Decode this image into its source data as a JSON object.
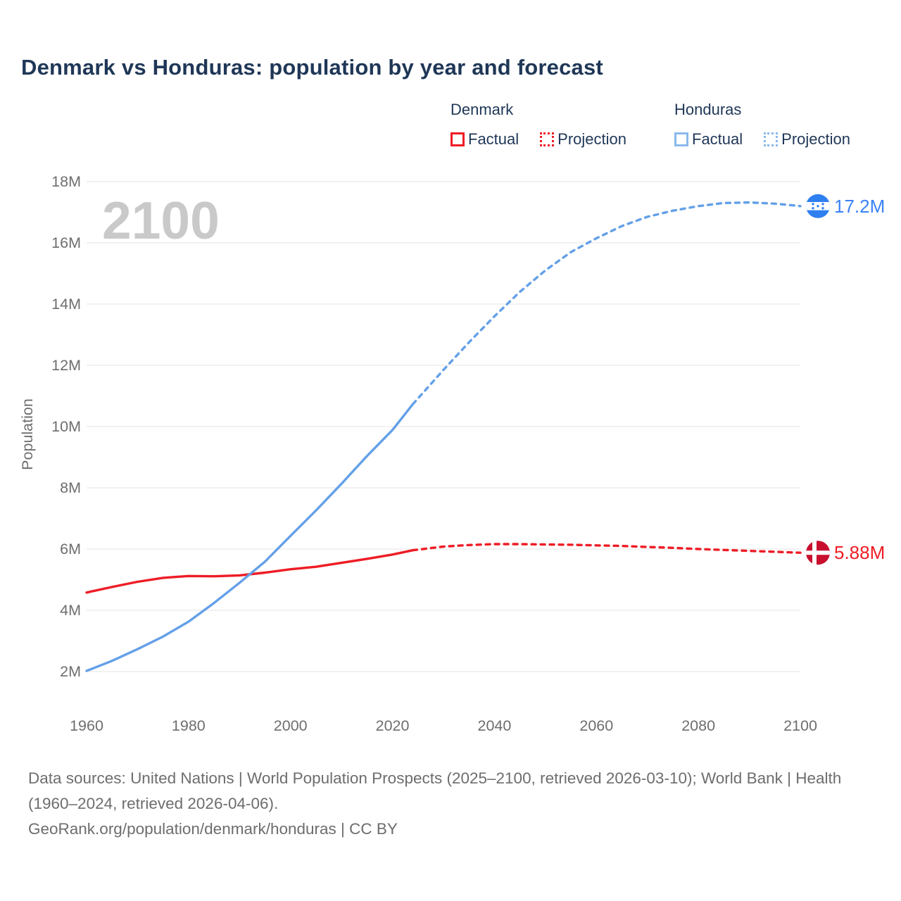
{
  "title": "Denmark vs Honduras: population by year and forecast",
  "legend": {
    "groups": [
      {
        "label": "Denmark",
        "items": [
          {
            "label": "Factual",
            "style": "solid",
            "color": "#ee1c25"
          },
          {
            "label": "Projection",
            "style": "dotted",
            "color": "#ee1c25"
          }
        ]
      },
      {
        "label": "Honduras",
        "items": [
          {
            "label": "Factual",
            "style": "solid",
            "color": "#8ab9ec"
          },
          {
            "label": "Projection",
            "style": "dotted",
            "color": "#8ab9ec"
          }
        ]
      }
    ]
  },
  "colors": {
    "title_navy": "#1f3757",
    "denmark_red": "#ee1c25",
    "honduras_blue": "#64a0e8",
    "honduras_label_blue": "#3b82f6",
    "denmark_flag_red": "#c8102e",
    "honduras_flag_blue": "#2e7ff0",
    "flag_white": "#ffffff",
    "axis_gray": "#6e6e6e",
    "watermark_gray": "#c9c9c9",
    "gridline_gray": "#ededed",
    "footer_gray": "#6d6d6d"
  },
  "chart_data": {
    "type": "line",
    "title": "Denmark vs Honduras: population by year and forecast",
    "xlabel": "",
    "ylabel": "Population",
    "watermark": "2100",
    "xlim": [
      1960,
      2100
    ],
    "ylim_millions": [
      2,
      18
    ],
    "grid": "horizontal-only",
    "x_ticks": [
      1960,
      1980,
      2000,
      2020,
      2040,
      2060,
      2080,
      2100
    ],
    "y_ticks": [
      {
        "value": 2,
        "label": "2M"
      },
      {
        "value": 4,
        "label": "4M"
      },
      {
        "value": 6,
        "label": "6M"
      },
      {
        "value": 8,
        "label": "8M"
      },
      {
        "value": 10,
        "label": "10M"
      },
      {
        "value": 12,
        "label": "12M"
      },
      {
        "value": 14,
        "label": "14M"
      },
      {
        "value": 16,
        "label": "16M"
      },
      {
        "value": 18,
        "label": "18M"
      }
    ],
    "series": [
      {
        "name": "Denmark Factual",
        "country": "denmark",
        "style": "solid",
        "color": "#ee1c25",
        "points": [
          [
            1960,
            4.58
          ],
          [
            1965,
            4.76
          ],
          [
            1970,
            4.93
          ],
          [
            1975,
            5.06
          ],
          [
            1980,
            5.12
          ],
          [
            1985,
            5.11
          ],
          [
            1990,
            5.14
          ],
          [
            1995,
            5.23
          ],
          [
            2000,
            5.34
          ],
          [
            2005,
            5.42
          ],
          [
            2010,
            5.55
          ],
          [
            2015,
            5.68
          ],
          [
            2020,
            5.82
          ],
          [
            2024,
            5.96
          ]
        ]
      },
      {
        "name": "Denmark Projection",
        "country": "denmark",
        "style": "dashed",
        "color": "#ee1c25",
        "points": [
          [
            2024,
            5.96
          ],
          [
            2030,
            6.08
          ],
          [
            2035,
            6.13
          ],
          [
            2040,
            6.16
          ],
          [
            2045,
            6.16
          ],
          [
            2050,
            6.15
          ],
          [
            2055,
            6.14
          ],
          [
            2060,
            6.12
          ],
          [
            2065,
            6.1
          ],
          [
            2070,
            6.07
          ],
          [
            2075,
            6.04
          ],
          [
            2080,
            6.0
          ],
          [
            2085,
            5.97
          ],
          [
            2090,
            5.94
          ],
          [
            2095,
            5.91
          ],
          [
            2100,
            5.88
          ]
        ]
      },
      {
        "name": "Honduras Factual",
        "country": "honduras",
        "style": "solid",
        "color": "#64a0e8",
        "points": [
          [
            1960,
            2.02
          ],
          [
            1965,
            2.35
          ],
          [
            1970,
            2.73
          ],
          [
            1975,
            3.14
          ],
          [
            1980,
            3.63
          ],
          [
            1985,
            4.24
          ],
          [
            1990,
            4.9
          ],
          [
            1995,
            5.59
          ],
          [
            2000,
            6.43
          ],
          [
            2005,
            7.26
          ],
          [
            2010,
            8.13
          ],
          [
            2015,
            9.04
          ],
          [
            2020,
            9.89
          ],
          [
            2024,
            10.73
          ]
        ]
      },
      {
        "name": "Honduras Projection",
        "country": "honduras",
        "style": "dashed",
        "color": "#64a0e8",
        "points": [
          [
            2024,
            10.73
          ],
          [
            2030,
            11.85
          ],
          [
            2035,
            12.75
          ],
          [
            2040,
            13.6
          ],
          [
            2045,
            14.4
          ],
          [
            2050,
            15.1
          ],
          [
            2055,
            15.7
          ],
          [
            2060,
            16.15
          ],
          [
            2065,
            16.55
          ],
          [
            2070,
            16.85
          ],
          [
            2075,
            17.05
          ],
          [
            2080,
            17.2
          ],
          [
            2085,
            17.3
          ],
          [
            2090,
            17.32
          ],
          [
            2095,
            17.28
          ],
          [
            2100,
            17.2
          ]
        ]
      }
    ],
    "end_labels": [
      {
        "series": "Honduras",
        "text": "17.2M",
        "value": 17.2,
        "color": "#3b82f6",
        "flag": "honduras"
      },
      {
        "series": "Denmark",
        "text": "5.88M",
        "value": 5.88,
        "color": "#ee1c25",
        "flag": "denmark"
      }
    ],
    "legend_position": "top-right"
  },
  "footer": {
    "sources": "Data sources: United Nations | World Population Prospects (2025–2100, retrieved 2026-03-10); World Bank | Health (1960–2024, retrieved 2026-04-06).",
    "attribution": "GeoRank.org/population/denmark/honduras | CC BY"
  }
}
